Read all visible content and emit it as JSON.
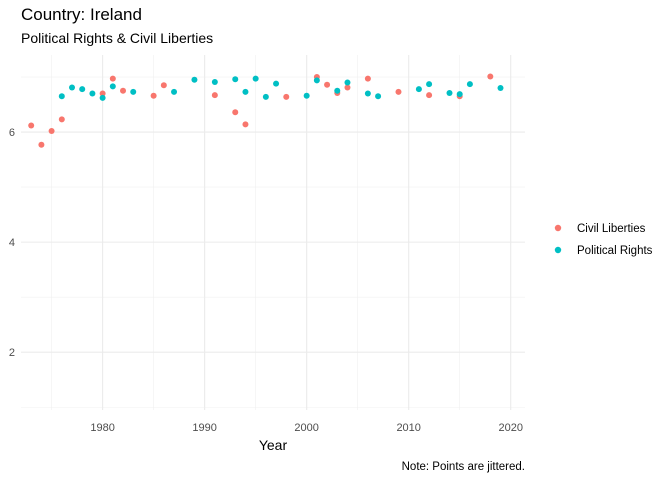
{
  "chart_data": {
    "type": "scatter",
    "title": "Country: Ireland",
    "subtitle": "Political Rights & Civil Liberties",
    "xlabel": "Year",
    "ylabel": "",
    "caption": "Note: Points are jittered.",
    "xlim": [
      1972,
      2021.4
    ],
    "ylim": [
      0.95,
      7.4
    ],
    "xticks": [
      1980,
      1990,
      2000,
      2010,
      2020
    ],
    "yticks": [
      2,
      4,
      6
    ],
    "grid": true,
    "legend_position": "right",
    "series": [
      {
        "name": "Civil Liberties",
        "color": "#F8766D",
        "points": [
          [
            1973,
            6.12
          ],
          [
            1974,
            5.77
          ],
          [
            1975,
            6.02
          ],
          [
            1976,
            6.23
          ],
          [
            1980,
            6.7
          ],
          [
            1981,
            6.97
          ],
          [
            1982,
            6.75
          ],
          [
            1985,
            6.66
          ],
          [
            1986,
            6.85
          ],
          [
            1991,
            6.67
          ],
          [
            1993,
            6.36
          ],
          [
            1994,
            6.14
          ],
          [
            1998,
            6.64
          ],
          [
            2001,
            7.0
          ],
          [
            2002,
            6.86
          ],
          [
            2003,
            6.71
          ],
          [
            2004,
            6.81
          ],
          [
            2006,
            6.97
          ],
          [
            2009,
            6.73
          ],
          [
            2012,
            6.67
          ],
          [
            2015,
            6.65
          ],
          [
            2018,
            7.01
          ]
        ]
      },
      {
        "name": "Political Rights",
        "color": "#00BFC4",
        "points": [
          [
            1976,
            6.65
          ],
          [
            1977,
            6.81
          ],
          [
            1978,
            6.78
          ],
          [
            1979,
            6.7
          ],
          [
            1980,
            6.62
          ],
          [
            1981,
            6.83
          ],
          [
            1983,
            6.73
          ],
          [
            1987,
            6.73
          ],
          [
            1989,
            6.95
          ],
          [
            1991,
            6.91
          ],
          [
            1993,
            6.96
          ],
          [
            1994,
            6.73
          ],
          [
            1995,
            6.97
          ],
          [
            1996,
            6.64
          ],
          [
            1997,
            6.88
          ],
          [
            2000,
            6.66
          ],
          [
            2001,
            6.94
          ],
          [
            2003,
            6.75
          ],
          [
            2004,
            6.9
          ],
          [
            2006,
            6.7
          ],
          [
            2007,
            6.65
          ],
          [
            2011,
            6.78
          ],
          [
            2012,
            6.87
          ],
          [
            2014,
            6.71
          ],
          [
            2015,
            6.69
          ],
          [
            2016,
            6.87
          ],
          [
            2019,
            6.8
          ]
        ]
      }
    ]
  }
}
